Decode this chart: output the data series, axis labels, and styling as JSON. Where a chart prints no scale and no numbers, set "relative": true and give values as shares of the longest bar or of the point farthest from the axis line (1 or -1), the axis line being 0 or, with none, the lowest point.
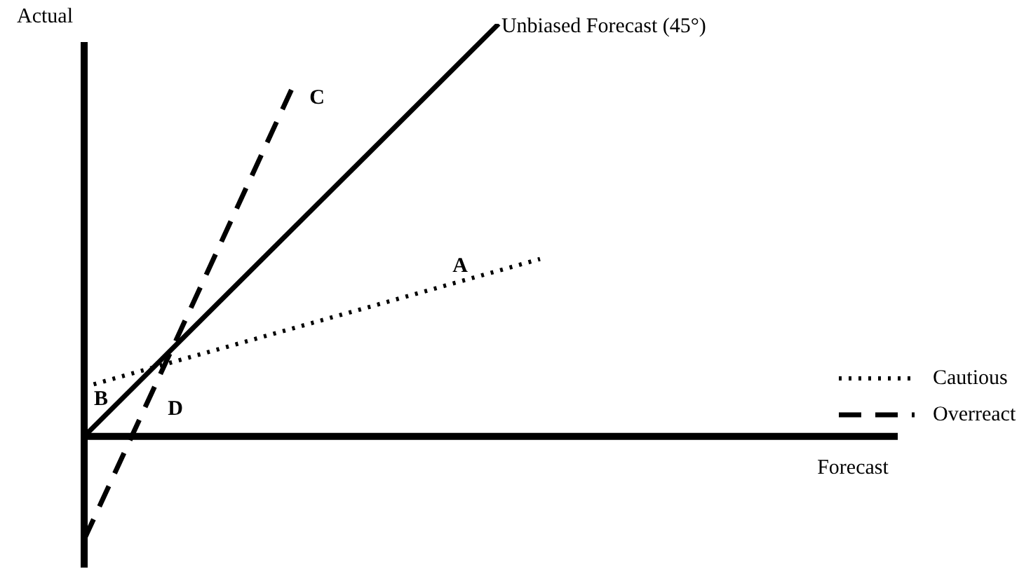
{
  "chart_data": {
    "type": "line",
    "relative": true,
    "ylabel": "Actual",
    "legend": "right",
    "marker": "none",
    "categories": [
      null,
      null,
      null,
      null,
      null,
      null,
      null,
      null,
      null,
      null,
      null,
      null
    ],
    "series": [
      {
        "name": "Unbiased Forecast (45°)",
        "color": "#000000",
        "line_style": "solid",
        "values": [
          0,
          null,
          null,
          null,
          null,
          null,
          null,
          null,
          null,
          null,
          1,
          null
        ]
      },
      {
        "name": "Cautious",
        "color": "#000000",
        "line_style": "dotted",
        "values": [
          0.12,
          null,
          null,
          null,
          null,
          null,
          null,
          null,
          null,
          null,
          null,
          0.43
        ]
      },
      {
        "name": "Overreact",
        "color": "#000000",
        "line_style": "dashed",
        "values": [
          -0.25,
          null,
          null,
          null,
          null,
          0.84,
          null,
          null,
          null,
          null,
          null,
          null
        ]
      }
    ],
    "annotations": [
      "A",
      "B",
      "C",
      "D",
      "Forecast"
    ]
  }
}
